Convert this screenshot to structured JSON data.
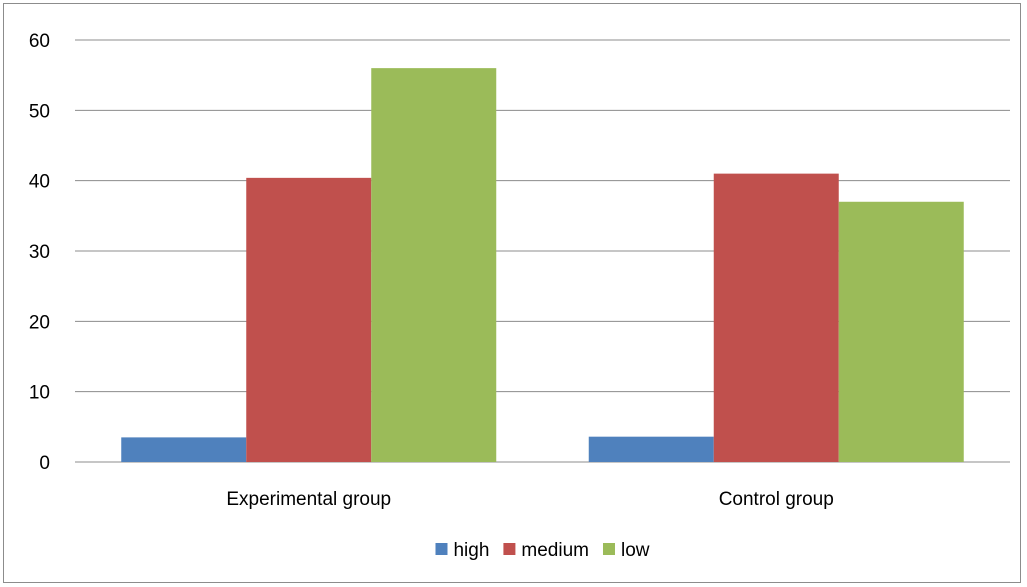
{
  "chart_data": {
    "type": "bar",
    "categories": [
      "Experimental group",
      "Control group"
    ],
    "series": [
      {
        "name": "high",
        "values": [
          3.5,
          3.6
        ],
        "color": "#4f81bd"
      },
      {
        "name": "medium",
        "values": [
          40.4,
          41
        ],
        "color": "#c0504d"
      },
      {
        "name": "low",
        "values": [
          56,
          37
        ],
        "color": "#9bbb59"
      }
    ],
    "ylim": [
      0,
      60
    ],
    "yticks": [
      0,
      10,
      20,
      30,
      40,
      50,
      60
    ],
    "grid": true,
    "legend_position": "bottom"
  }
}
